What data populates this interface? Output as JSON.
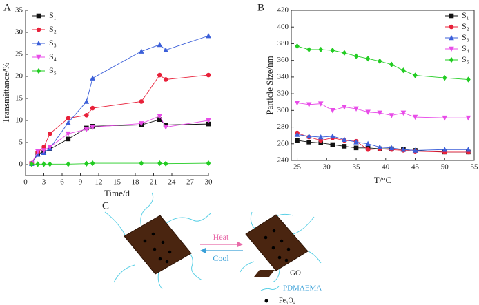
{
  "chart_data": [
    {
      "type": "line",
      "panel": "A",
      "xlabel": "Time/d",
      "ylabel": "Transmittance/%",
      "x": [
        1,
        2,
        3,
        4,
        7,
        10,
        11,
        19,
        22,
        23,
        30
      ],
      "xlim": [
        0,
        30
      ],
      "xticks": [
        0,
        3,
        6,
        9,
        12,
        15,
        18,
        21,
        24,
        27,
        30
      ],
      "ylim": [
        -2.5,
        35
      ],
      "yticks": [
        0,
        5,
        10,
        15,
        20,
        25,
        30,
        35
      ],
      "legend": "upper left",
      "frame": false,
      "series": [
        {
          "name": "S₁",
          "color": "#111111",
          "marker": "square",
          "values": [
            0.2,
            2.5,
            2.8,
            3.5,
            5.8,
            8.3,
            8.7,
            9.0,
            10.2,
            9.0,
            9.2
          ]
        },
        {
          "name": "S₂",
          "color": "#e8213a",
          "marker": "circle",
          "values": [
            0.3,
            2.8,
            4.0,
            7.0,
            10.5,
            11.2,
            12.8,
            14.3,
            20.3,
            19.3,
            20.3
          ]
        },
        {
          "name": "S₃",
          "color": "#3b5fd9",
          "marker": "triangle-up",
          "values": [
            0.2,
            2.3,
            2.7,
            3.7,
            9.5,
            14.3,
            19.6,
            25.7,
            27.2,
            26.0,
            29.2
          ]
        },
        {
          "name": "S₄",
          "color": "#e84ce8",
          "marker": "triangle-down",
          "values": [
            0.2,
            3.0,
            3.2,
            4.0,
            7.0,
            8.0,
            8.5,
            9.3,
            11.0,
            8.5,
            10.0
          ]
        },
        {
          "name": "S₅",
          "color": "#22cc22",
          "marker": "diamond",
          "values": [
            0.1,
            0.1,
            0.1,
            0.1,
            0.1,
            0.2,
            0.3,
            0.3,
            0.3,
            0.2,
            0.3
          ]
        }
      ]
    },
    {
      "type": "line",
      "panel": "B",
      "xlabel": "T/°C",
      "ylabel": "Particle Size/nm",
      "x": [
        25,
        27,
        29,
        31,
        33,
        35,
        37,
        39,
        41,
        43,
        45,
        50,
        54
      ],
      "xlim": [
        24,
        55
      ],
      "xticks": [
        25,
        30,
        35,
        40,
        45,
        50,
        55
      ],
      "ylim": [
        240,
        420
      ],
      "yticks": [
        240,
        260,
        280,
        300,
        320,
        340,
        360,
        380,
        400,
        420
      ],
      "legend": "upper right",
      "frame": true,
      "series": [
        {
          "name": "S₁",
          "color": "#111111",
          "marker": "square",
          "values": [
            264,
            262,
            261,
            259,
            257,
            255,
            255,
            254,
            254,
            253,
            252,
            250,
            250
          ]
        },
        {
          "name": "S₂",
          "color": "#e8213a",
          "marker": "circle",
          "values": [
            273,
            268,
            264,
            267,
            264,
            263,
            253,
            254,
            253,
            252,
            251,
            250,
            250
          ]
        },
        {
          "name": "S₃",
          "color": "#3b5fd9",
          "marker": "triangle-up",
          "values": [
            271,
            269,
            268,
            269,
            265,
            262,
            260,
            256,
            255,
            253,
            252,
            253,
            253
          ]
        },
        {
          "name": "S₄",
          "color": "#e84ce8",
          "marker": "triangle-down",
          "values": [
            309,
            307,
            308,
            300,
            304,
            302,
            298,
            297,
            294,
            297,
            292,
            291,
            291
          ]
        },
        {
          "name": "S₅",
          "color": "#22cc22",
          "marker": "diamond",
          "values": [
            377,
            373,
            373,
            372,
            369,
            365,
            362,
            359,
            355,
            348,
            342,
            339,
            337
          ]
        }
      ]
    }
  ],
  "diagram": {
    "panel": "C",
    "heat": "Heat",
    "cool": "Cool",
    "legend": [
      "GO",
      "PDMAEMA",
      "Fe₃O₄"
    ]
  }
}
